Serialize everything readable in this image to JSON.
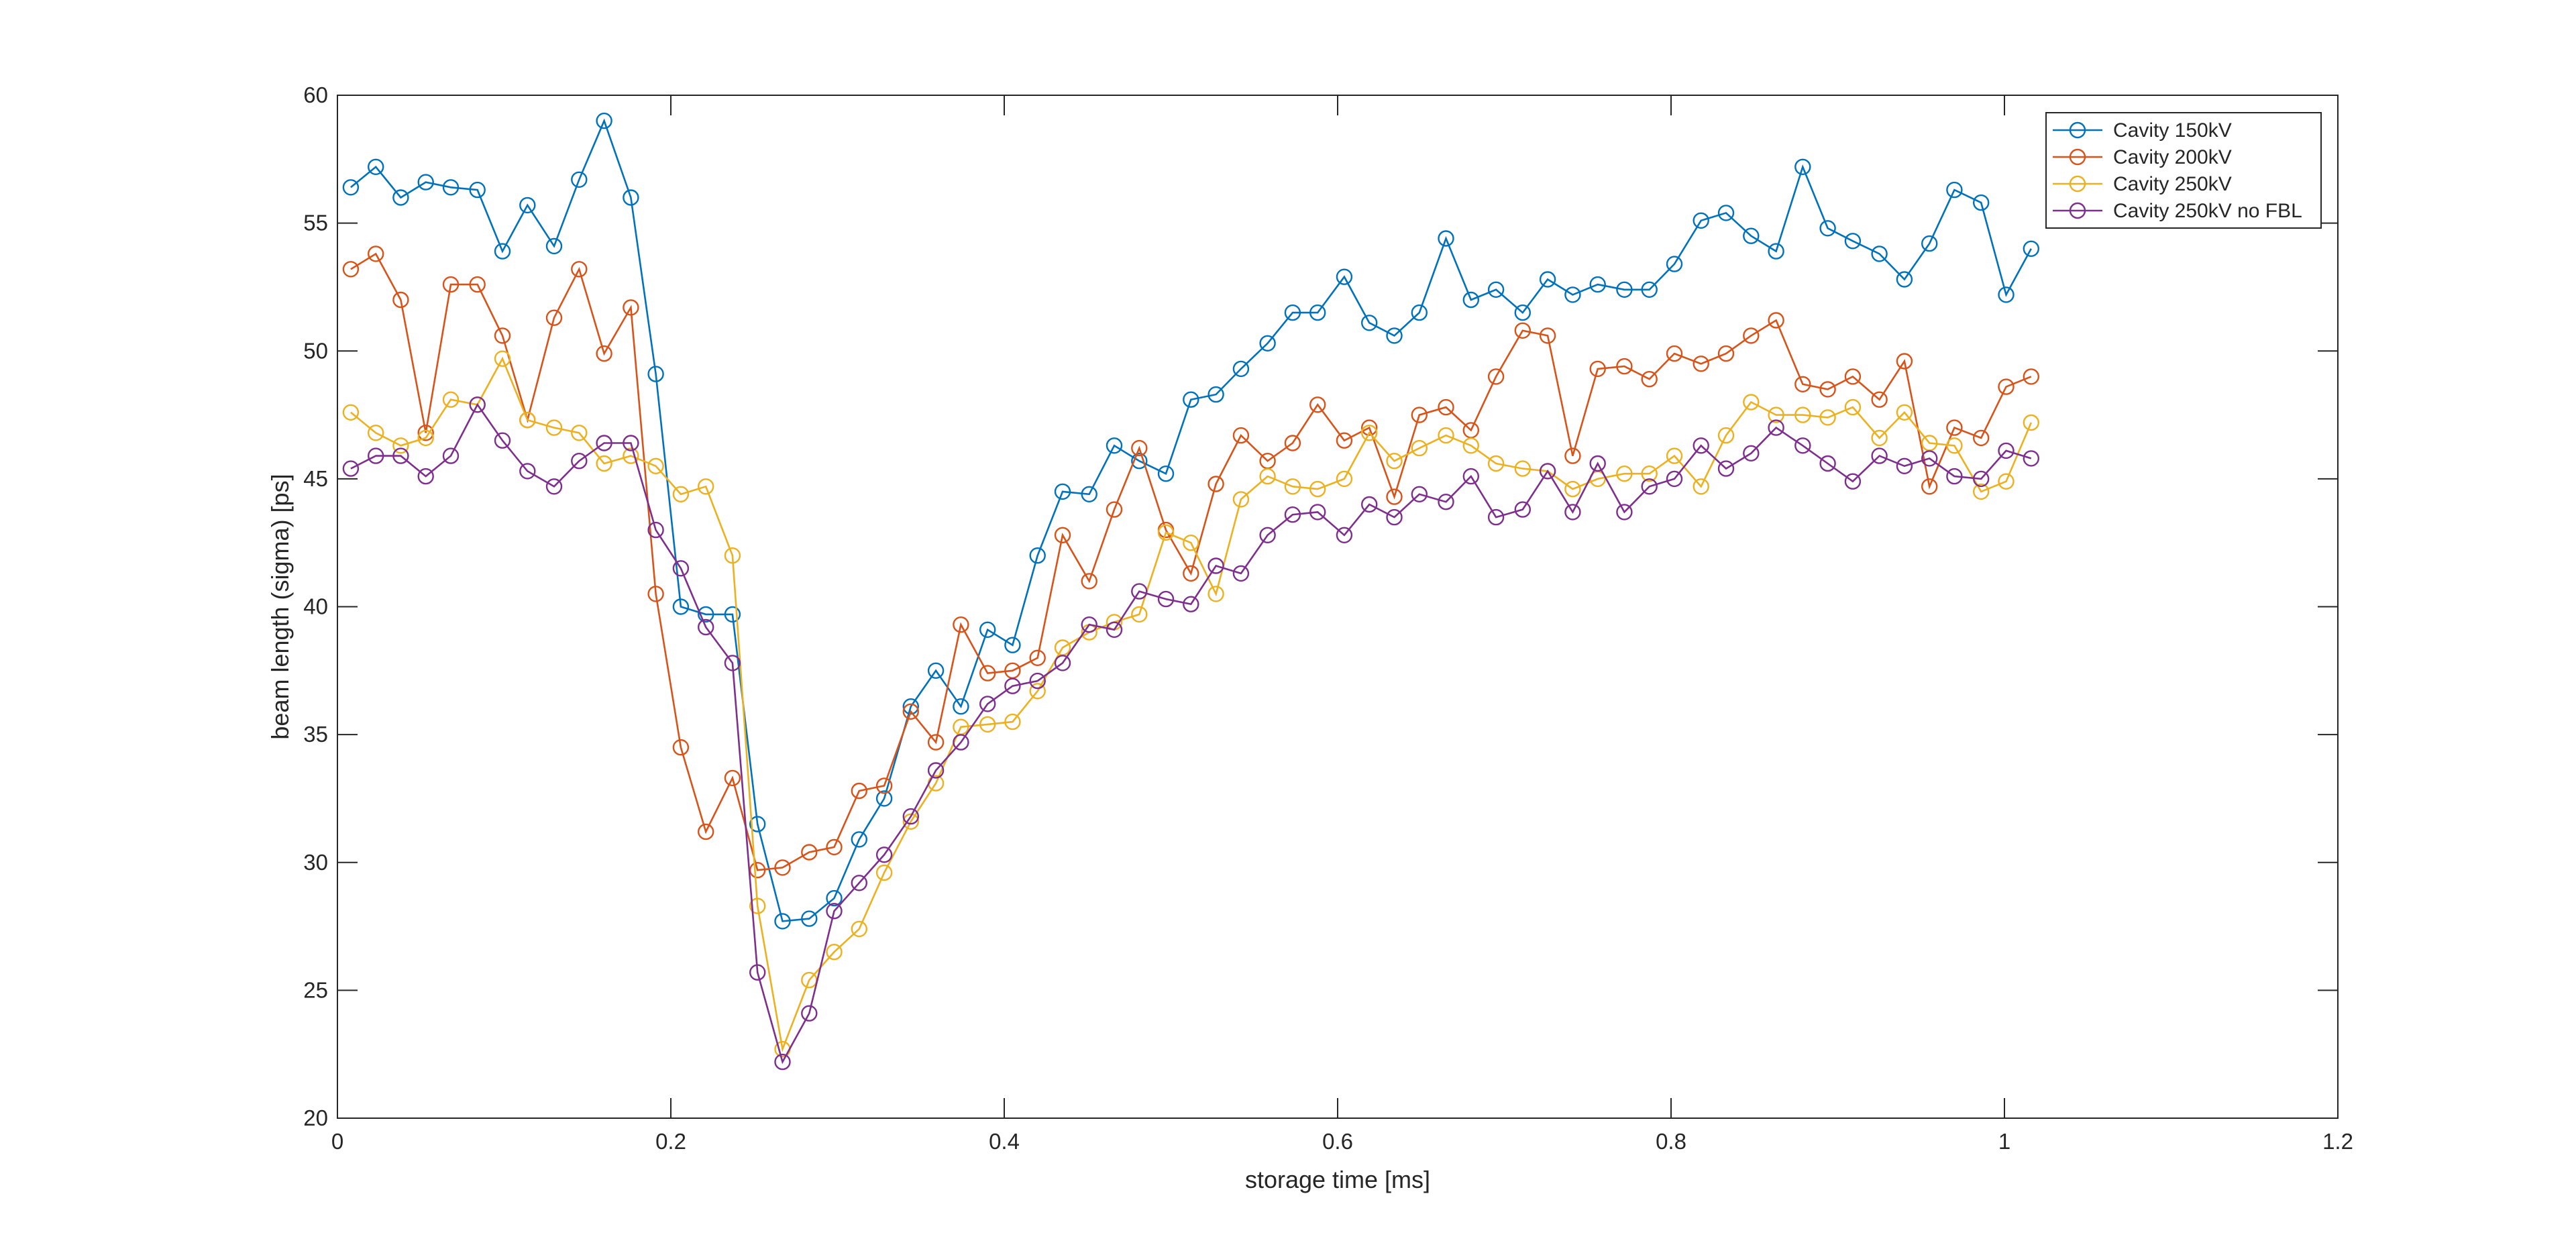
{
  "chart_data": {
    "type": "line",
    "xlabel": "storage time [ms]",
    "ylabel": "beam length (sigma) [ps]",
    "xlim": [
      0,
      1.2
    ],
    "ylim": [
      20,
      60
    ],
    "xticks": [
      "0",
      "0.2",
      "0.4",
      "0.6",
      "0.8",
      "1",
      "1.2"
    ],
    "yticks": [
      "20",
      "25",
      "30",
      "35",
      "40",
      "45",
      "50",
      "55",
      "60"
    ],
    "grid": false,
    "legend_position": "top-right",
    "marker": "circle",
    "x": [
      0.008,
      0.023,
      0.038,
      0.053,
      0.068,
      0.084,
      0.099,
      0.114,
      0.13,
      0.145,
      0.16,
      0.176,
      0.191,
      0.206,
      0.221,
      0.237,
      0.252,
      0.267,
      0.283,
      0.298,
      0.313,
      0.328,
      0.344,
      0.359,
      0.374,
      0.39,
      0.405,
      0.42,
      0.435,
      0.451,
      0.466,
      0.481,
      0.497,
      0.512,
      0.527,
      0.542,
      0.558,
      0.573,
      0.588,
      0.604,
      0.619,
      0.634,
      0.649,
      0.665,
      0.68,
      0.695,
      0.711,
      0.726,
      0.741,
      0.756,
      0.772,
      0.787,
      0.802,
      0.818,
      0.833,
      0.848,
      0.863,
      0.879,
      0.894,
      0.909,
      0.925,
      0.94,
      0.955,
      0.97,
      0.986,
      1.001,
      1.016
    ],
    "series": [
      {
        "name": "Cavity 150kV",
        "color": "#0072BD",
        "values": [
          56.4,
          57.2,
          56.0,
          56.6,
          56.4,
          56.3,
          53.9,
          55.7,
          54.1,
          56.7,
          59.0,
          56.0,
          49.1,
          40.0,
          39.7,
          39.7,
          31.5,
          27.7,
          27.8,
          28.6,
          30.9,
          32.5,
          36.1,
          37.5,
          36.1,
          39.1,
          38.5,
          42.0,
          44.5,
          44.4,
          46.3,
          45.7,
          45.2,
          48.1,
          48.3,
          49.3,
          50.3,
          51.5,
          51.5,
          52.9,
          51.1,
          50.6,
          51.5,
          54.4,
          52.0,
          52.4,
          51.5,
          52.8,
          52.2,
          52.6,
          52.4,
          52.4,
          53.4,
          55.1,
          55.4,
          54.5,
          53.9,
          57.2,
          54.8,
          54.3,
          53.8,
          52.8,
          54.2,
          56.3,
          55.8,
          52.2,
          54.0
        ]
      },
      {
        "name": "Cavity 200kV",
        "color": "#D95319",
        "values": [
          53.2,
          53.8,
          52.0,
          46.8,
          52.6,
          52.6,
          50.6,
          47.3,
          51.3,
          53.2,
          49.9,
          51.7,
          40.5,
          34.5,
          31.2,
          33.3,
          29.7,
          29.8,
          30.4,
          30.6,
          32.8,
          33.0,
          35.9,
          34.7,
          39.3,
          37.4,
          37.5,
          38.0,
          42.8,
          41.0,
          43.8,
          46.2,
          43.0,
          41.3,
          44.8,
          46.7,
          45.7,
          46.4,
          47.9,
          46.5,
          47.0,
          44.3,
          47.5,
          47.8,
          46.9,
          49.0,
          50.8,
          50.6,
          45.9,
          49.3,
          49.4,
          48.9,
          49.9,
          49.5,
          49.9,
          50.6,
          51.2,
          48.7,
          48.5,
          49.0,
          48.1,
          49.6,
          44.7,
          47.0,
          46.6,
          48.6,
          49.0
        ]
      },
      {
        "name": "Cavity 250kV",
        "color": "#EDB120",
        "values": [
          47.6,
          46.8,
          46.3,
          46.6,
          48.1,
          47.9,
          49.7,
          47.3,
          47.0,
          46.8,
          45.6,
          45.9,
          45.5,
          44.4,
          44.7,
          42.0,
          28.3,
          22.7,
          25.4,
          26.5,
          27.4,
          29.6,
          31.6,
          33.1,
          35.3,
          35.4,
          35.5,
          36.7,
          38.4,
          39.0,
          39.4,
          39.7,
          42.9,
          42.5,
          40.5,
          44.2,
          45.1,
          44.7,
          44.6,
          45.0,
          46.8,
          45.7,
          46.2,
          46.7,
          46.3,
          45.6,
          45.4,
          45.3,
          44.6,
          45.0,
          45.2,
          45.2,
          45.9,
          44.7,
          46.7,
          48.0,
          47.5,
          47.5,
          47.4,
          47.8,
          46.6,
          47.6,
          46.4,
          46.3,
          44.5,
          44.9,
          47.2
        ]
      },
      {
        "name": "Cavity 250kV no FBL",
        "color": "#7E2F8E",
        "values": [
          45.4,
          45.9,
          45.9,
          45.1,
          45.9,
          47.9,
          46.5,
          45.3,
          44.7,
          45.7,
          46.4,
          46.4,
          43.0,
          41.5,
          39.2,
          37.8,
          25.7,
          22.2,
          24.1,
          28.1,
          29.2,
          30.3,
          31.8,
          33.6,
          34.7,
          36.2,
          36.9,
          37.1,
          37.8,
          39.3,
          39.1,
          40.6,
          40.3,
          40.1,
          41.6,
          41.3,
          42.8,
          43.6,
          43.7,
          42.8,
          44.0,
          43.5,
          44.4,
          44.1,
          45.1,
          43.5,
          43.8,
          45.3,
          43.7,
          45.6,
          43.7,
          44.7,
          45.0,
          46.3,
          45.4,
          46.0,
          47.0,
          46.3,
          45.6,
          44.9,
          45.9,
          45.5,
          45.8,
          45.1,
          45.0,
          46.1,
          45.8
        ]
      }
    ]
  }
}
